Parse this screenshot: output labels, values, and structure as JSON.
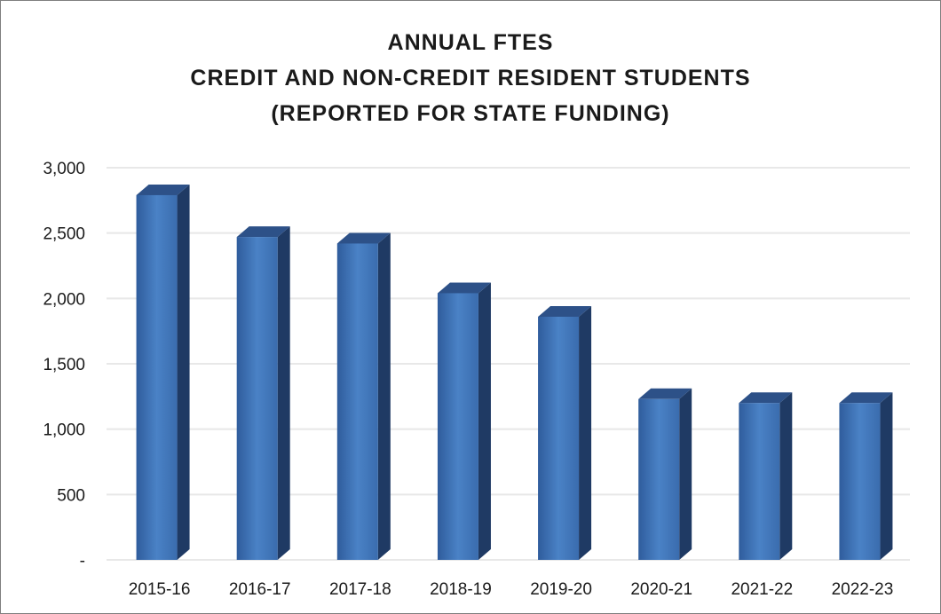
{
  "chart_data": {
    "type": "bar",
    "title": [
      "ANNUAL FTES",
      "CREDIT AND NON-CREDIT RESIDENT STUDENTS",
      "(REPORTED FOR STATE FUNDING)"
    ],
    "categories": [
      "2015-16",
      "2016-17",
      "2017-18",
      "2018-19",
      "2019-20",
      "2020-21",
      "2021-22",
      "2022-23"
    ],
    "values": [
      2790,
      2470,
      2420,
      2040,
      1860,
      1230,
      1200,
      1200
    ],
    "ylim": [
      0,
      3000
    ],
    "yticks": [
      0,
      500,
      1000,
      1500,
      2000,
      2500,
      3000
    ],
    "ytick_labels": [
      "-",
      "500",
      "1,000",
      "1,500",
      "2,000",
      "2,500",
      "3,000"
    ],
    "xlabel": "",
    "ylabel": "",
    "grid": true,
    "legend": "none",
    "style": "3d-column",
    "colors": {
      "bar_front_top": "#4a7fc0",
      "bar_front_bottom": "#3a67a8",
      "bar_side": "#1f3a64",
      "bar_top": "#2d5188",
      "grid": "#e8e8e8",
      "frame": "#7f7f7f"
    }
  }
}
